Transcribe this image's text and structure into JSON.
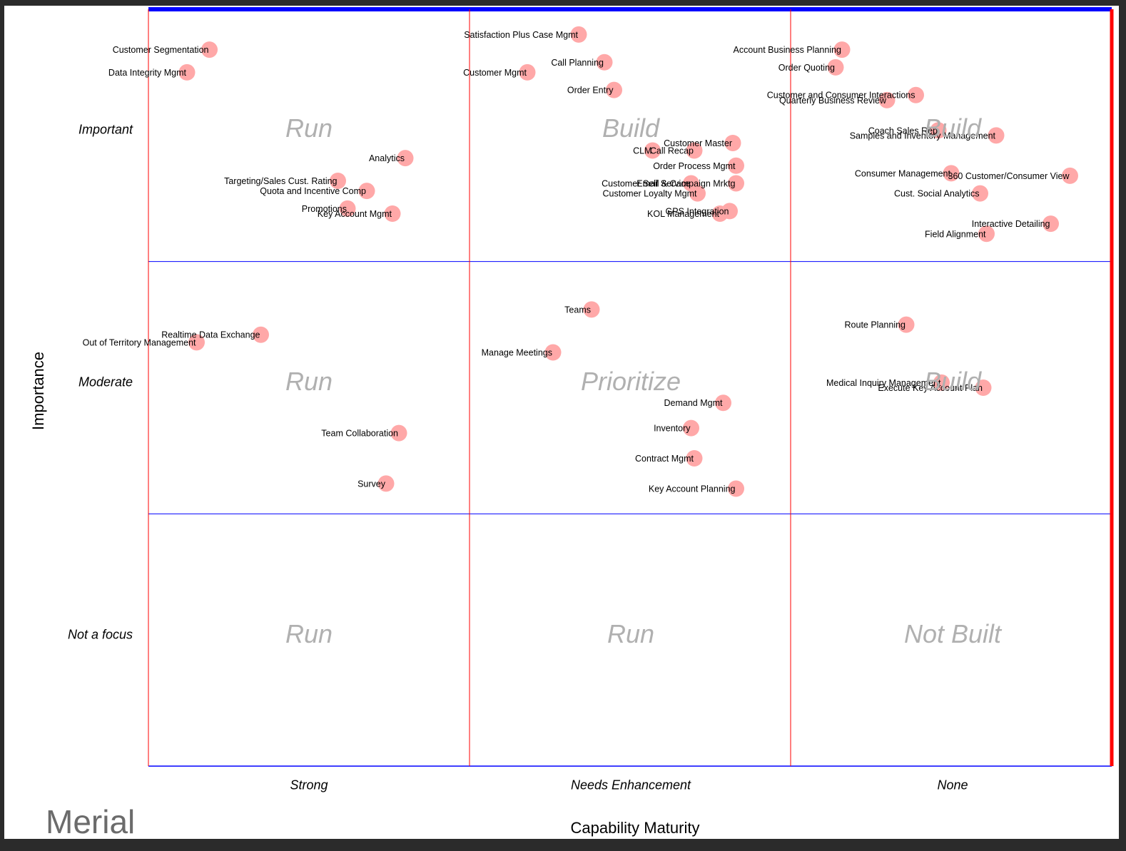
{
  "chart_data": {
    "type": "scatter",
    "xlabel": "Capability Maturity",
    "ylabel": "Importance",
    "x_categories": [
      "Strong",
      "Needs Enhancement",
      "None"
    ],
    "y_categories": [
      "Important",
      "Moderate",
      "Not a focus"
    ],
    "quadrants": [
      [
        "Run",
        "Build",
        "Build"
      ],
      [
        "Run",
        "Prioritize",
        "Build"
      ],
      [
        "Run",
        "Run",
        "Not Built"
      ]
    ],
    "points": [
      {
        "label": "Customer Segmentation",
        "x": 0.19,
        "y": 2.84
      },
      {
        "label": "Data Integrity Mgmt",
        "x": 0.12,
        "y": 2.75
      },
      {
        "label": "Analytics",
        "x": 0.8,
        "y": 2.41
      },
      {
        "label": "Targeting/Sales Cust. Rating",
        "x": 0.59,
        "y": 2.32
      },
      {
        "label": "Quota and Incentive Comp",
        "x": 0.68,
        "y": 2.28
      },
      {
        "label": "Promotions",
        "x": 0.62,
        "y": 2.21
      },
      {
        "label": "Key Account Mgmt",
        "x": 0.76,
        "y": 2.19
      },
      {
        "label": "Satisfaction Plus Case Mgmt",
        "x": 1.34,
        "y": 2.9
      },
      {
        "label": "Call Planning",
        "x": 1.42,
        "y": 2.79
      },
      {
        "label": "Customer Mgmt",
        "x": 1.18,
        "y": 2.75
      },
      {
        "label": "Order Entry",
        "x": 1.45,
        "y": 2.68
      },
      {
        "label": "Customer Master",
        "x": 1.82,
        "y": 2.47
      },
      {
        "label": "CLM",
        "x": 1.57,
        "y": 2.44
      },
      {
        "label": "Call Recap",
        "x": 1.7,
        "y": 2.44
      },
      {
        "label": "Order Process Mgmt",
        "x": 1.83,
        "y": 2.38
      },
      {
        "label": "Customer Self Service",
        "x": 1.69,
        "y": 2.31
      },
      {
        "label": "Email & Campaign Mrktg",
        "x": 1.83,
        "y": 2.31
      },
      {
        "label": "Customer Loyalty Mgmt",
        "x": 1.71,
        "y": 2.27
      },
      {
        "label": "GPS Integration",
        "x": 1.81,
        "y": 2.2
      },
      {
        "label": "KOL Management",
        "x": 1.78,
        "y": 2.19
      },
      {
        "label": "Account Business Planning",
        "x": 2.16,
        "y": 2.84
      },
      {
        "label": "Order Quoting",
        "x": 2.14,
        "y": 2.77
      },
      {
        "label": "Customer and Consumer Interactions",
        "x": 2.39,
        "y": 2.66
      },
      {
        "label": "Quarterly Business Review",
        "x": 2.3,
        "y": 2.64
      },
      {
        "label": "Coach Sales Rep",
        "x": 2.46,
        "y": 2.52
      },
      {
        "label": "Samples and Inventory Management",
        "x": 2.64,
        "y": 2.5
      },
      {
        "label": "Consumer Management",
        "x": 2.5,
        "y": 2.35
      },
      {
        "label": "360 Customer/Consumer View",
        "x": 2.87,
        "y": 2.34
      },
      {
        "label": "Cust. Social Analytics",
        "x": 2.59,
        "y": 2.27
      },
      {
        "label": "Interactive Detailing",
        "x": 2.81,
        "y": 2.15
      },
      {
        "label": "Field Alignment",
        "x": 2.61,
        "y": 2.11
      },
      {
        "label": "Realtime Data Exchange",
        "x": 0.35,
        "y": 1.71
      },
      {
        "label": "Out of Territory Management",
        "x": 0.15,
        "y": 1.68
      },
      {
        "label": "Team Collaboration",
        "x": 0.78,
        "y": 1.32
      },
      {
        "label": "Survey",
        "x": 0.74,
        "y": 1.12
      },
      {
        "label": "Teams",
        "x": 1.38,
        "y": 1.81
      },
      {
        "label": "Manage Meetings",
        "x": 1.26,
        "y": 1.64
      },
      {
        "label": "Demand Mgmt",
        "x": 1.79,
        "y": 1.44
      },
      {
        "label": "Inventory",
        "x": 1.69,
        "y": 1.34
      },
      {
        "label": "Contract Mgmt",
        "x": 1.7,
        "y": 1.22
      },
      {
        "label": "Key Account Planning",
        "x": 1.83,
        "y": 1.1
      },
      {
        "label": "Route Planning",
        "x": 2.36,
        "y": 1.75
      },
      {
        "label": "Medical Inquiry Management",
        "x": 2.47,
        "y": 1.52
      },
      {
        "label": "Execute Key Account Plan",
        "x": 2.6,
        "y": 1.5
      }
    ],
    "colors": {
      "point": "#ffa8a8",
      "vertical_grid": "#ff0000",
      "horizontal_grid": "#0000ff",
      "quadrant_label": "#b0b0b0"
    }
  },
  "brand": {
    "name": "Merial"
  }
}
